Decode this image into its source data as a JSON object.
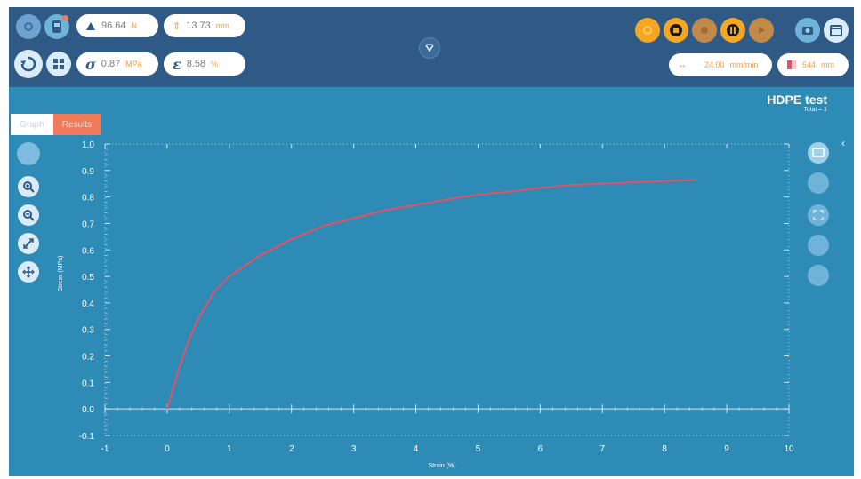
{
  "topbar": {
    "force": {
      "value": "96.64",
      "unit": "N"
    },
    "position": {
      "value": "13.73",
      "unit": "mm"
    },
    "stress": {
      "symbol": "σ",
      "value": "0.87",
      "unit": "MPa"
    },
    "strain": {
      "symbol": "ε",
      "value": "8.58",
      "unit": "%"
    },
    "speed": {
      "value": "24.00",
      "unit": "mm/min"
    },
    "extra": {
      "value": "544",
      "unit": "mm"
    }
  },
  "test": {
    "title": "HDPE test",
    "subtitle": "Total = 1"
  },
  "tabs": [
    {
      "label": "Graph"
    },
    {
      "label": "Results"
    }
  ],
  "colors": {
    "accent": "#f5a623",
    "curve": "#d9556b",
    "panel": "#2d8bb5",
    "header": "#2f5a86"
  },
  "chart_data": {
    "type": "line",
    "xlabel": "Strain (%)",
    "ylabel": "Stress (MPa)",
    "xlim": [
      -1,
      10
    ],
    "ylim": [
      -0.1,
      1.0
    ],
    "xticks": [
      -1,
      0,
      1,
      2,
      3,
      4,
      5,
      6,
      7,
      8,
      9,
      10
    ],
    "yticks": [
      "1.0",
      "0.9",
      "0.8",
      "0.7",
      "0.6",
      "0.5",
      "0.4",
      "0.3",
      "0.2",
      "0.1",
      "0.0",
      "-0.1"
    ],
    "series": [
      {
        "x": [
          0,
          0.1,
          0.2,
          0.35,
          0.5,
          0.75,
          1.0,
          1.5,
          2.0,
          2.5,
          3.0,
          3.5,
          4.0,
          4.5,
          5.0,
          5.5,
          6.0,
          6.5,
          7.0,
          7.5,
          8.0,
          8.5
        ],
        "y": [
          0,
          0.08,
          0.16,
          0.26,
          0.34,
          0.44,
          0.5,
          0.58,
          0.64,
          0.69,
          0.72,
          0.75,
          0.77,
          0.79,
          0.81,
          0.82,
          0.835,
          0.845,
          0.85,
          0.855,
          0.86,
          0.865
        ]
      }
    ]
  }
}
